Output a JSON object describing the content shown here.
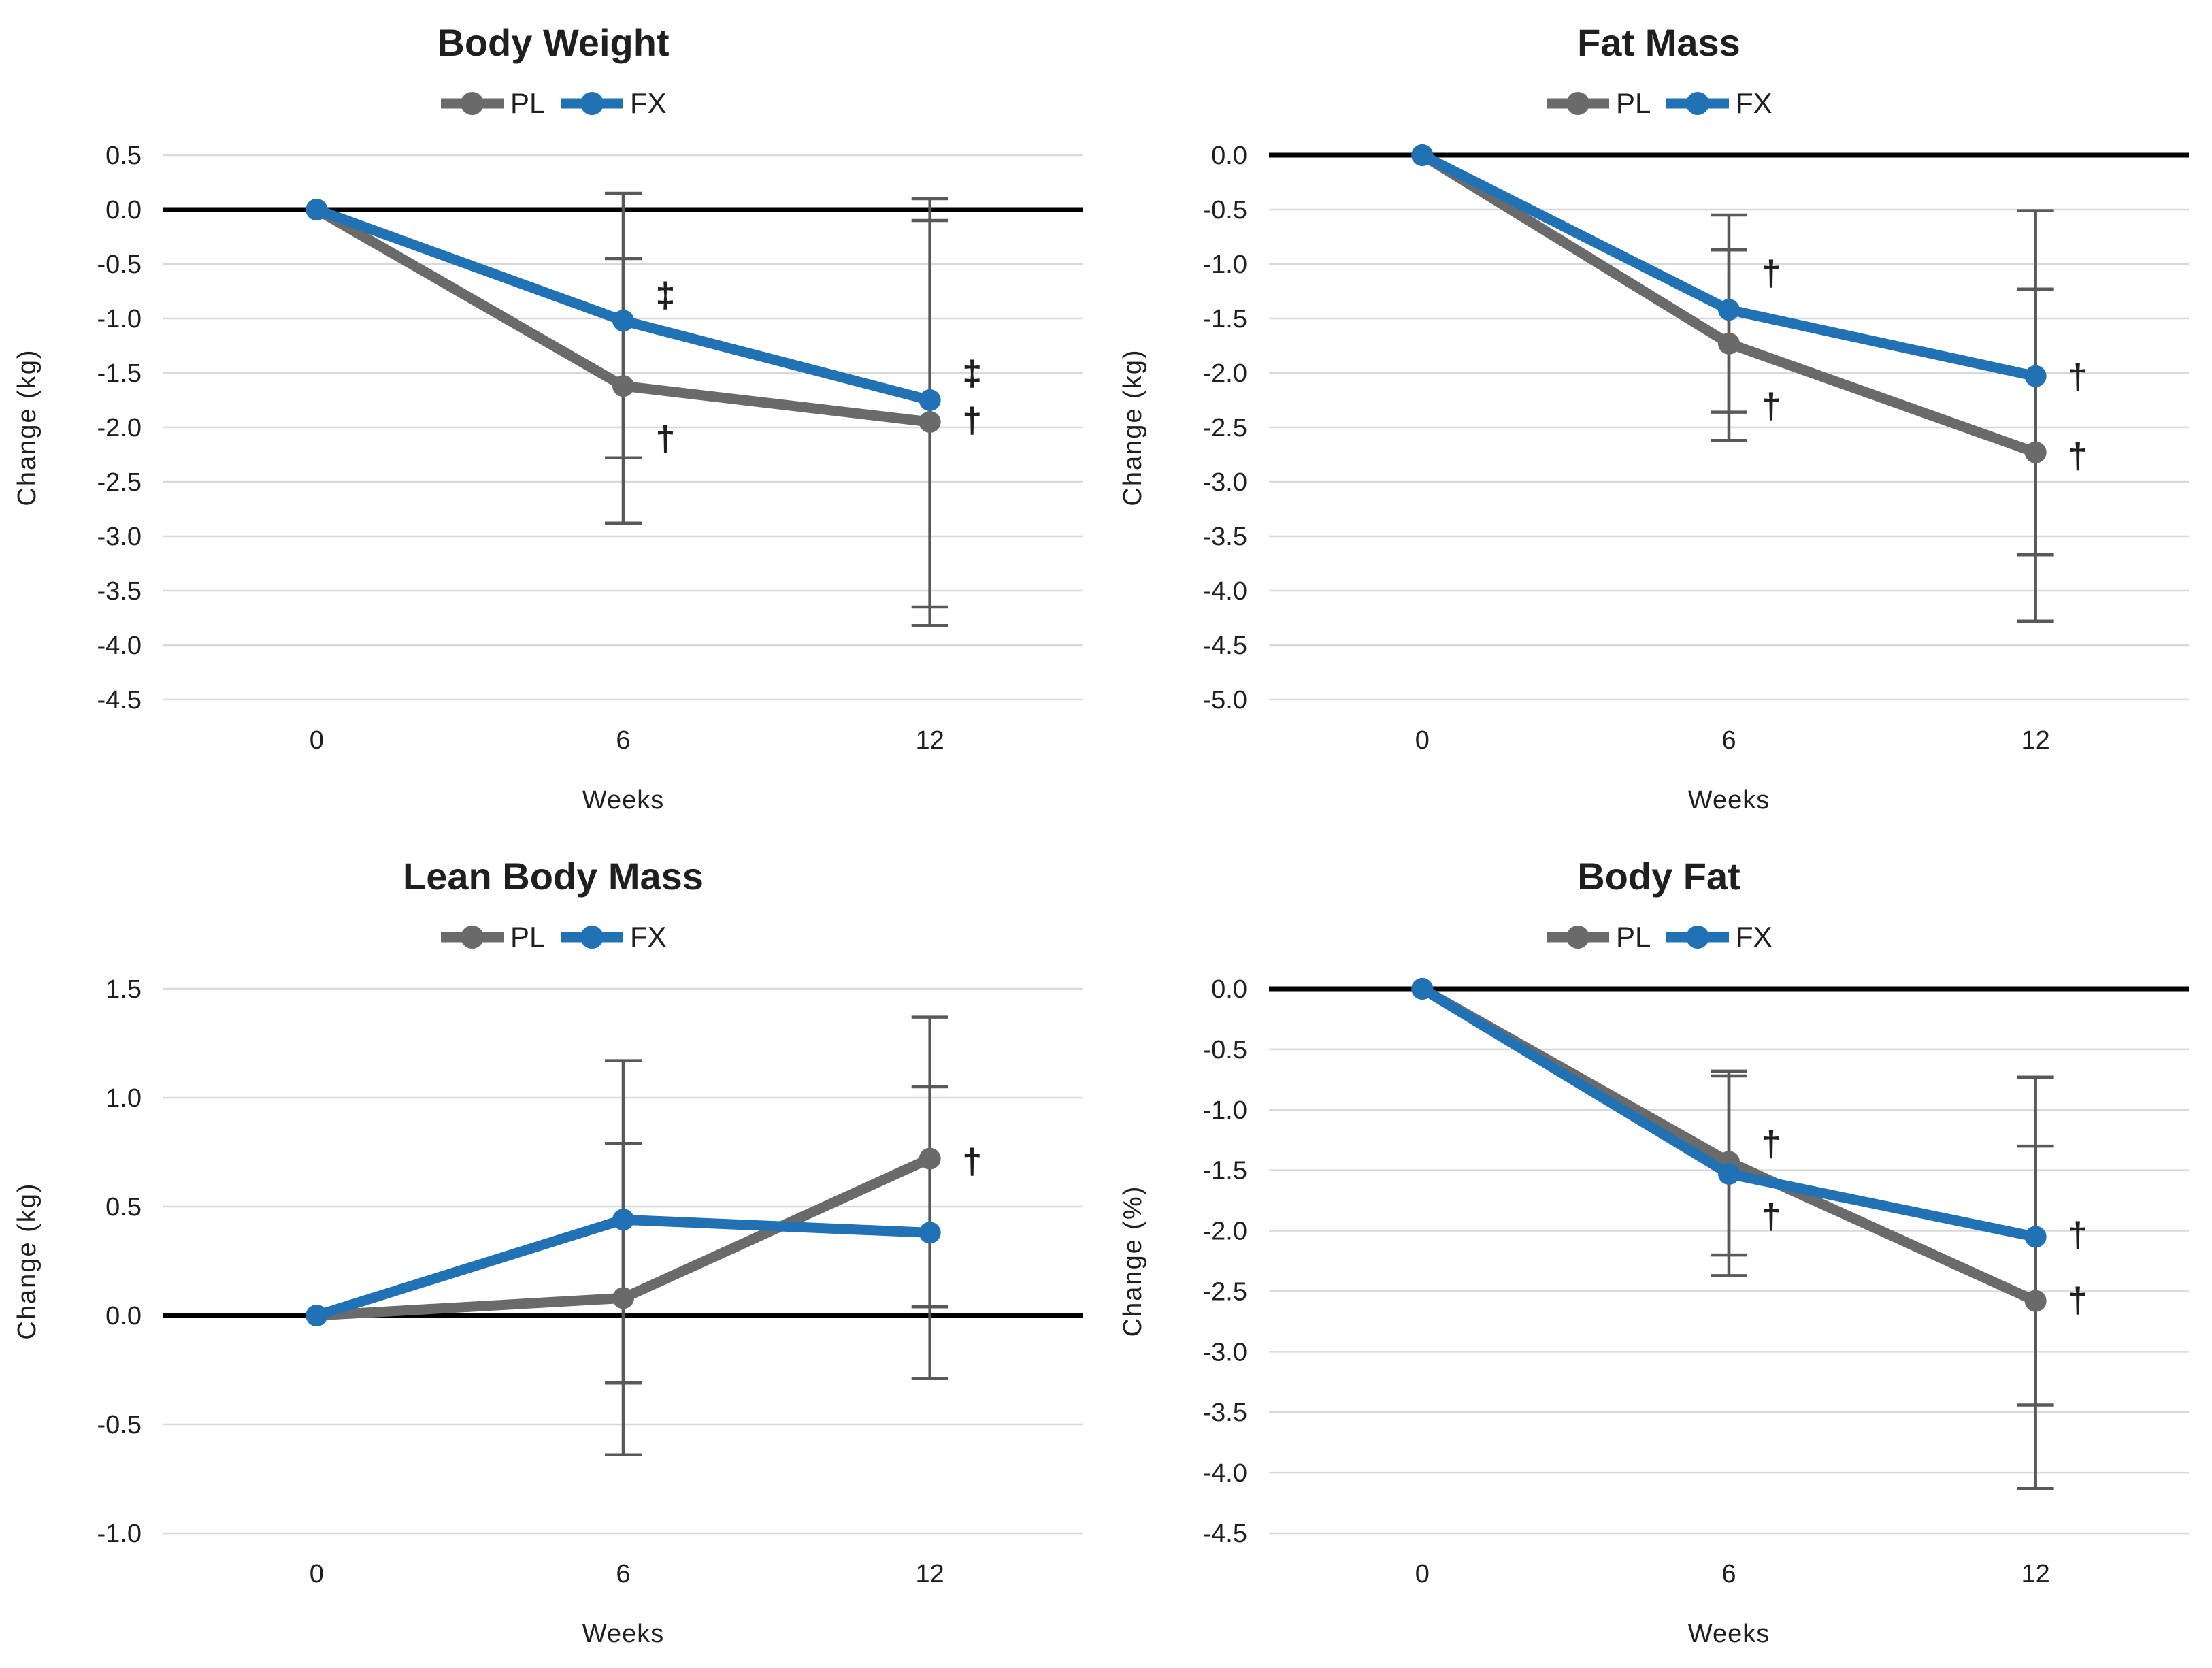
{
  "figure": {
    "background": "#ffffff"
  },
  "colors": {
    "pl_line": "#6a6a6a",
    "fx_line": "#2171b5",
    "pl_annotation": "#575757",
    "fx_annotation": "#4d72c0",
    "gridline": "#d9d9d9",
    "zero_axis": "#000000",
    "error_bar": "#595959",
    "title_text": "#1a1a1a",
    "tick_text": "#262626"
  },
  "legend": {
    "items": [
      "PL",
      "FX"
    ]
  },
  "chart_data": [
    {
      "type": "line",
      "title": "Body Weight",
      "xlabel": "Weeks",
      "ylabel": "Change  (kg)",
      "categories": [
        "0",
        "6",
        "12"
      ],
      "ylim": [
        -4.5,
        0.5
      ],
      "ytick_step": 0.5,
      "grid": true,
      "legend_position": "top",
      "series": [
        {
          "name": "PL",
          "color_key": "pl_line",
          "values": [
            0,
            -1.62,
            -1.95
          ],
          "error_bars": [
            null,
            {
              "upper": -0.45,
              "lower": -2.88
            },
            {
              "upper": -0.1,
              "lower": -3.82
            }
          ]
        },
        {
          "name": "FX",
          "color_key": "fx_line",
          "values": [
            0,
            -1.02,
            -1.75
          ],
          "error_bars": [
            null,
            {
              "upper": 0.15,
              "lower": -2.28
            },
            {
              "upper": 0.1,
              "lower": -3.65
            }
          ]
        }
      ],
      "annotations": [
        {
          "symbol": "‡",
          "category_index": 1,
          "y": -0.78,
          "color_key": "fx_annotation",
          "series": "FX"
        },
        {
          "symbol": "†",
          "category_index": 1,
          "y": -2.1,
          "color_key": "pl_annotation",
          "series": "PL"
        },
        {
          "symbol": "‡",
          "category_index": 2,
          "y": -1.5,
          "color_key": "fx_annotation",
          "series": "FX"
        },
        {
          "symbol": "†",
          "category_index": 2,
          "y": -1.93,
          "color_key": "pl_annotation",
          "series": "PL"
        }
      ]
    },
    {
      "type": "line",
      "title": "Fat Mass",
      "xlabel": "Weeks",
      "ylabel": "Change  (kg)",
      "categories": [
        "0",
        "6",
        "12"
      ],
      "ylim": [
        -5.0,
        0.0
      ],
      "ytick_step": 0.5,
      "grid": true,
      "legend_position": "top",
      "series": [
        {
          "name": "PL",
          "color_key": "pl_line",
          "values": [
            0,
            -1.73,
            -2.73
          ],
          "error_bars": [
            null,
            {
              "upper": -0.87,
              "lower": -2.62
            },
            {
              "upper": -1.23,
              "lower": -4.28
            }
          ]
        },
        {
          "name": "FX",
          "color_key": "fx_line",
          "values": [
            0,
            -1.42,
            -2.03
          ],
          "error_bars": [
            null,
            {
              "upper": -0.55,
              "lower": -2.36
            },
            {
              "upper": -0.51,
              "lower": -3.67
            }
          ]
        }
      ],
      "annotations": [
        {
          "symbol": "†",
          "category_index": 1,
          "y": -1.08,
          "color_key": "fx_annotation",
          "series": "FX"
        },
        {
          "symbol": "†",
          "category_index": 1,
          "y": -2.3,
          "color_key": "pl_annotation",
          "series": "PL"
        },
        {
          "symbol": "†",
          "category_index": 2,
          "y": -2.03,
          "color_key": "fx_annotation",
          "series": "FX"
        },
        {
          "symbol": "†",
          "category_index": 2,
          "y": -2.76,
          "color_key": "pl_annotation",
          "series": "PL"
        }
      ]
    },
    {
      "type": "line",
      "title": "Lean Body Mass",
      "xlabel": "Weeks",
      "ylabel": "Change  (kg)",
      "categories": [
        "0",
        "6",
        "12"
      ],
      "ylim": [
        -1.0,
        1.5
      ],
      "ytick_step": 0.5,
      "grid": true,
      "legend_position": "top",
      "series": [
        {
          "name": "PL",
          "color_key": "pl_line",
          "values": [
            0,
            0.08,
            0.72
          ],
          "error_bars": [
            null,
            {
              "upper": 0.79,
              "lower": -0.64
            },
            {
              "upper": 1.37,
              "lower": 0.04
            }
          ]
        },
        {
          "name": "FX",
          "color_key": "fx_line",
          "values": [
            0,
            0.44,
            0.38
          ],
          "error_bars": [
            null,
            {
              "upper": 1.17,
              "lower": -0.31
            },
            {
              "upper": 1.05,
              "lower": -0.29
            }
          ]
        }
      ],
      "annotations": [
        {
          "symbol": "†",
          "category_index": 2,
          "y": 0.71,
          "color_key": "pl_annotation",
          "series": "PL"
        }
      ]
    },
    {
      "type": "line",
      "title": "Body Fat",
      "xlabel": "Weeks",
      "ylabel": "Change  (%)",
      "categories": [
        "0",
        "6",
        "12"
      ],
      "ylim": [
        -4.5,
        0.0
      ],
      "ytick_step": 0.5,
      "grid": true,
      "legend_position": "top",
      "series": [
        {
          "name": "PL",
          "color_key": "pl_line",
          "values": [
            0,
            -1.43,
            -2.58
          ],
          "error_bars": [
            null,
            {
              "upper": -0.68,
              "lower": -2.2
            },
            {
              "upper": -1.3,
              "lower": -4.13
            }
          ]
        },
        {
          "name": "FX",
          "color_key": "fx_line",
          "values": [
            0,
            -1.53,
            -2.05
          ],
          "error_bars": [
            null,
            {
              "upper": -0.72,
              "lower": -2.37
            },
            {
              "upper": -0.73,
              "lower": -3.44
            }
          ]
        }
      ],
      "annotations": [
        {
          "symbol": "†",
          "category_index": 1,
          "y": -1.28,
          "color_key": "pl_annotation",
          "series": "PL"
        },
        {
          "symbol": "†",
          "category_index": 1,
          "y": -1.88,
          "color_key": "fx_annotation",
          "series": "FX"
        },
        {
          "symbol": "†",
          "category_index": 2,
          "y": -2.03,
          "color_key": "fx_annotation",
          "series": "FX"
        },
        {
          "symbol": "†",
          "category_index": 2,
          "y": -2.57,
          "color_key": "pl_annotation",
          "series": "PL"
        }
      ]
    }
  ]
}
